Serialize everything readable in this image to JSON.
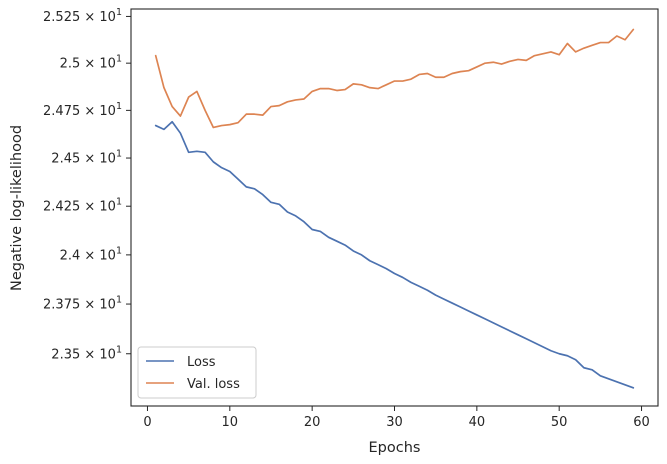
{
  "chart_data": {
    "type": "line",
    "xlabel": "Epochs",
    "ylabel": "Negative log-likelihood",
    "xlim": [
      -2,
      62
    ],
    "ylim": [
      23.24,
      25.29
    ],
    "x_ticks": [
      0,
      10,
      20,
      30,
      40,
      50,
      60
    ],
    "y_ticks": [
      {
        "value": 23.5,
        "mantissa": "2.35",
        "base": "10",
        "exponent": "1"
      },
      {
        "value": 23.75,
        "mantissa": "2.375",
        "base": "10",
        "exponent": "1"
      },
      {
        "value": 24.0,
        "mantissa": "2.4",
        "base": "10",
        "exponent": "1"
      },
      {
        "value": 24.25,
        "mantissa": "2.425",
        "base": "10",
        "exponent": "1"
      },
      {
        "value": 24.5,
        "mantissa": "2.45",
        "base": "10",
        "exponent": "1"
      },
      {
        "value": 24.75,
        "mantissa": "2.475",
        "base": "10",
        "exponent": "1"
      },
      {
        "value": 25.0,
        "mantissa": "2.5",
        "base": "10",
        "exponent": "1"
      },
      {
        "value": 25.25,
        "mantissa": "2.525",
        "base": "10",
        "exponent": "1"
      }
    ],
    "y_scale": "log",
    "grid": false,
    "legend_position": "lower-left",
    "x": [
      1,
      2,
      3,
      4,
      5,
      6,
      7,
      8,
      9,
      10,
      11,
      12,
      13,
      14,
      15,
      16,
      17,
      18,
      19,
      20,
      21,
      22,
      23,
      24,
      25,
      26,
      27,
      28,
      29,
      30,
      31,
      32,
      33,
      34,
      35,
      36,
      37,
      38,
      39,
      40,
      41,
      42,
      43,
      44,
      45,
      46,
      47,
      48,
      49,
      50,
      51,
      52,
      53,
      54,
      55,
      56,
      57,
      58,
      59
    ],
    "series": [
      {
        "name": "Loss",
        "color": "#4c72b0",
        "values": [
          24.67,
          24.65,
          24.69,
          24.63,
          24.53,
          24.535,
          24.53,
          24.48,
          24.45,
          24.43,
          24.39,
          24.35,
          24.34,
          24.31,
          24.27,
          24.26,
          24.22,
          24.2,
          24.17,
          24.13,
          24.12,
          24.09,
          24.07,
          24.05,
          24.02,
          24.0,
          23.97,
          23.95,
          23.93,
          23.905,
          23.885,
          23.86,
          23.84,
          23.82,
          23.795,
          23.775,
          23.755,
          23.735,
          23.715,
          23.695,
          23.675,
          23.655,
          23.635,
          23.615,
          23.595,
          23.575,
          23.555,
          23.535,
          23.515,
          23.5,
          23.49,
          23.47,
          23.43,
          23.42,
          23.39,
          23.375,
          23.36,
          23.345,
          23.33
        ]
      },
      {
        "name": "Val. loss",
        "color": "#dd8452",
        "values": [
          25.04,
          24.87,
          24.77,
          24.72,
          24.82,
          24.85,
          24.75,
          24.66,
          24.67,
          24.675,
          24.685,
          24.73,
          24.73,
          24.725,
          24.77,
          24.775,
          24.795,
          24.805,
          24.81,
          24.85,
          24.865,
          24.865,
          24.855,
          24.86,
          24.89,
          24.885,
          24.87,
          24.865,
          24.885,
          24.905,
          24.905,
          24.915,
          24.94,
          24.945,
          24.925,
          24.925,
          24.945,
          24.955,
          24.96,
          24.98,
          25.0,
          25.005,
          24.995,
          25.01,
          25.02,
          25.015,
          25.04,
          25.05,
          25.06,
          25.045,
          25.105,
          25.06,
          25.08,
          25.095,
          25.11,
          25.11,
          25.145,
          25.125,
          25.18
        ]
      }
    ]
  }
}
